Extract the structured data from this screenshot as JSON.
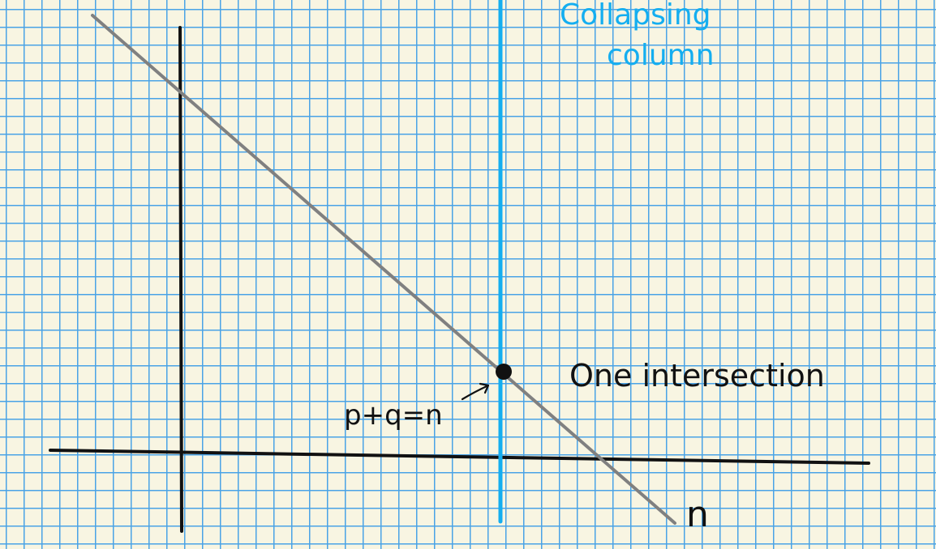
{
  "labels": {
    "collapsing_line1": "Collapsing",
    "collapsing_line2": "column",
    "intersection": "One intersection",
    "equation": "p+q=n",
    "axis_n": "n"
  },
  "colors": {
    "paper": "#f8f5e2",
    "grid": "#4aa3e6",
    "collapsing_column": "#14aef0",
    "axes": "#111111",
    "diagonal": "#808080"
  }
}
